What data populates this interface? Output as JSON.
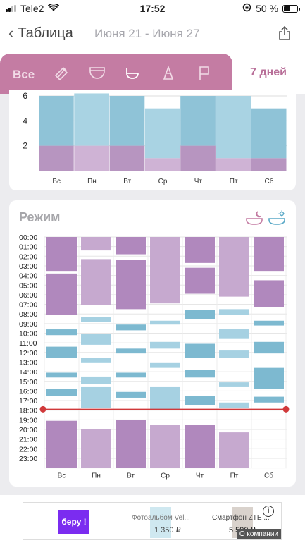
{
  "status": {
    "carrier": "Tele2",
    "time": "17:52",
    "battery": "50 %",
    "battery_level": 0.5
  },
  "nav": {
    "back_label": "Таблица",
    "date_range": "Июня 21 - Июня 27"
  },
  "tabs": {
    "all_label": "Все",
    "days_label": "7 дней",
    "icons": [
      "bottle-icon",
      "diaper-icon",
      "potty-icon",
      "pump-icon",
      "flag-icon"
    ]
  },
  "colors": {
    "accent": "#c47ca3",
    "sleep": "#b795c0",
    "wake": "#8fc3d7"
  },
  "chart_data": [
    {
      "type": "bar",
      "categories": [
        "Вс",
        "Пн",
        "Вт",
        "Ср",
        "Чт",
        "Пт",
        "Сб"
      ],
      "y_ticks": [
        "2",
        "4",
        "6"
      ],
      "ylim": [
        0,
        6
      ],
      "series": [
        {
          "values": [
            2,
            2,
            2,
            1,
            2,
            1,
            1
          ]
        },
        {
          "values": [
            4,
            4.2,
            4,
            4,
            4,
            5,
            4
          ]
        }
      ]
    },
    {
      "type": "bar",
      "title": "Режим",
      "categories": [
        "Вс",
        "Пн",
        "Вт",
        "Ср",
        "Чт",
        "Пт",
        "Сб"
      ],
      "hours": [
        "00:00",
        "01:00",
        "02:00",
        "03:00",
        "04:00",
        "05:00",
        "06:00",
        "07:00",
        "08:00",
        "09:00",
        "10:00",
        "11:00",
        "12:00",
        "13:00",
        "14:00",
        "15:00",
        "16:00",
        "17:00",
        "18:00",
        "19:00",
        "20:00",
        "21:00",
        "22:00",
        "23:00"
      ],
      "now_hour": 17.9,
      "sleep": [
        [
          [
            0,
            3.6
          ],
          [
            3.8,
            8.1
          ],
          [
            19.1,
            24
          ]
        ],
        [
          [
            0,
            1.4
          ],
          [
            2.3,
            7.1
          ],
          [
            20,
            24
          ]
        ],
        [
          [
            0,
            1.8
          ],
          [
            2.4,
            7.5
          ],
          [
            19,
            24
          ]
        ],
        [
          [
            0,
            6.9
          ],
          [
            19.5,
            24
          ]
        ],
        [
          [
            0,
            2.7
          ],
          [
            3.2,
            5.9
          ],
          [
            19.5,
            24
          ]
        ],
        [
          [
            0,
            6.2
          ],
          [
            20.3,
            24
          ]
        ],
        [
          [
            0,
            3.6
          ],
          [
            4.5,
            7.3
          ]
        ]
      ],
      "wake": [
        [
          [
            9.6,
            10.2
          ],
          [
            11.4,
            12.6
          ],
          [
            14.1,
            14.6
          ],
          [
            15.8,
            16.5
          ]
        ],
        [
          [
            8.3,
            8.8
          ],
          [
            10.1,
            11.2
          ],
          [
            12.6,
            13.1
          ],
          [
            14.5,
            15.3
          ],
          [
            15.6,
            17.8
          ]
        ],
        [
          [
            9.1,
            9.7
          ],
          [
            11.6,
            12.1
          ],
          [
            14.1,
            14.6
          ],
          [
            16.1,
            16.7
          ]
        ],
        [
          [
            8.7,
            9.1
          ],
          [
            10.9,
            11.6
          ],
          [
            13.1,
            13.6
          ],
          [
            15.6,
            17.9
          ]
        ],
        [
          [
            7.6,
            8.5
          ],
          [
            11.1,
            12.6
          ],
          [
            13.8,
            14.6
          ],
          [
            16.5,
            17.5
          ]
        ],
        [
          [
            7.5,
            8.1
          ],
          [
            9.6,
            10.6
          ],
          [
            11.8,
            12.6
          ],
          [
            15.1,
            15.6
          ],
          [
            17.2,
            17.8
          ]
        ],
        [
          [
            8.7,
            9.2
          ],
          [
            10.9,
            12.1
          ],
          [
            13.6,
            15.8
          ],
          [
            16.6,
            17.2
          ]
        ]
      ]
    }
  ],
  "ad": {
    "beru": "беру !",
    "item1_title": "Фотоальбом Vel...",
    "item1_price": "1 350 ₽",
    "item2_title": "Смартфон ZTE ...",
    "item2_price": "5 590 ₽",
    "about": "О компании",
    "info": "i"
  }
}
